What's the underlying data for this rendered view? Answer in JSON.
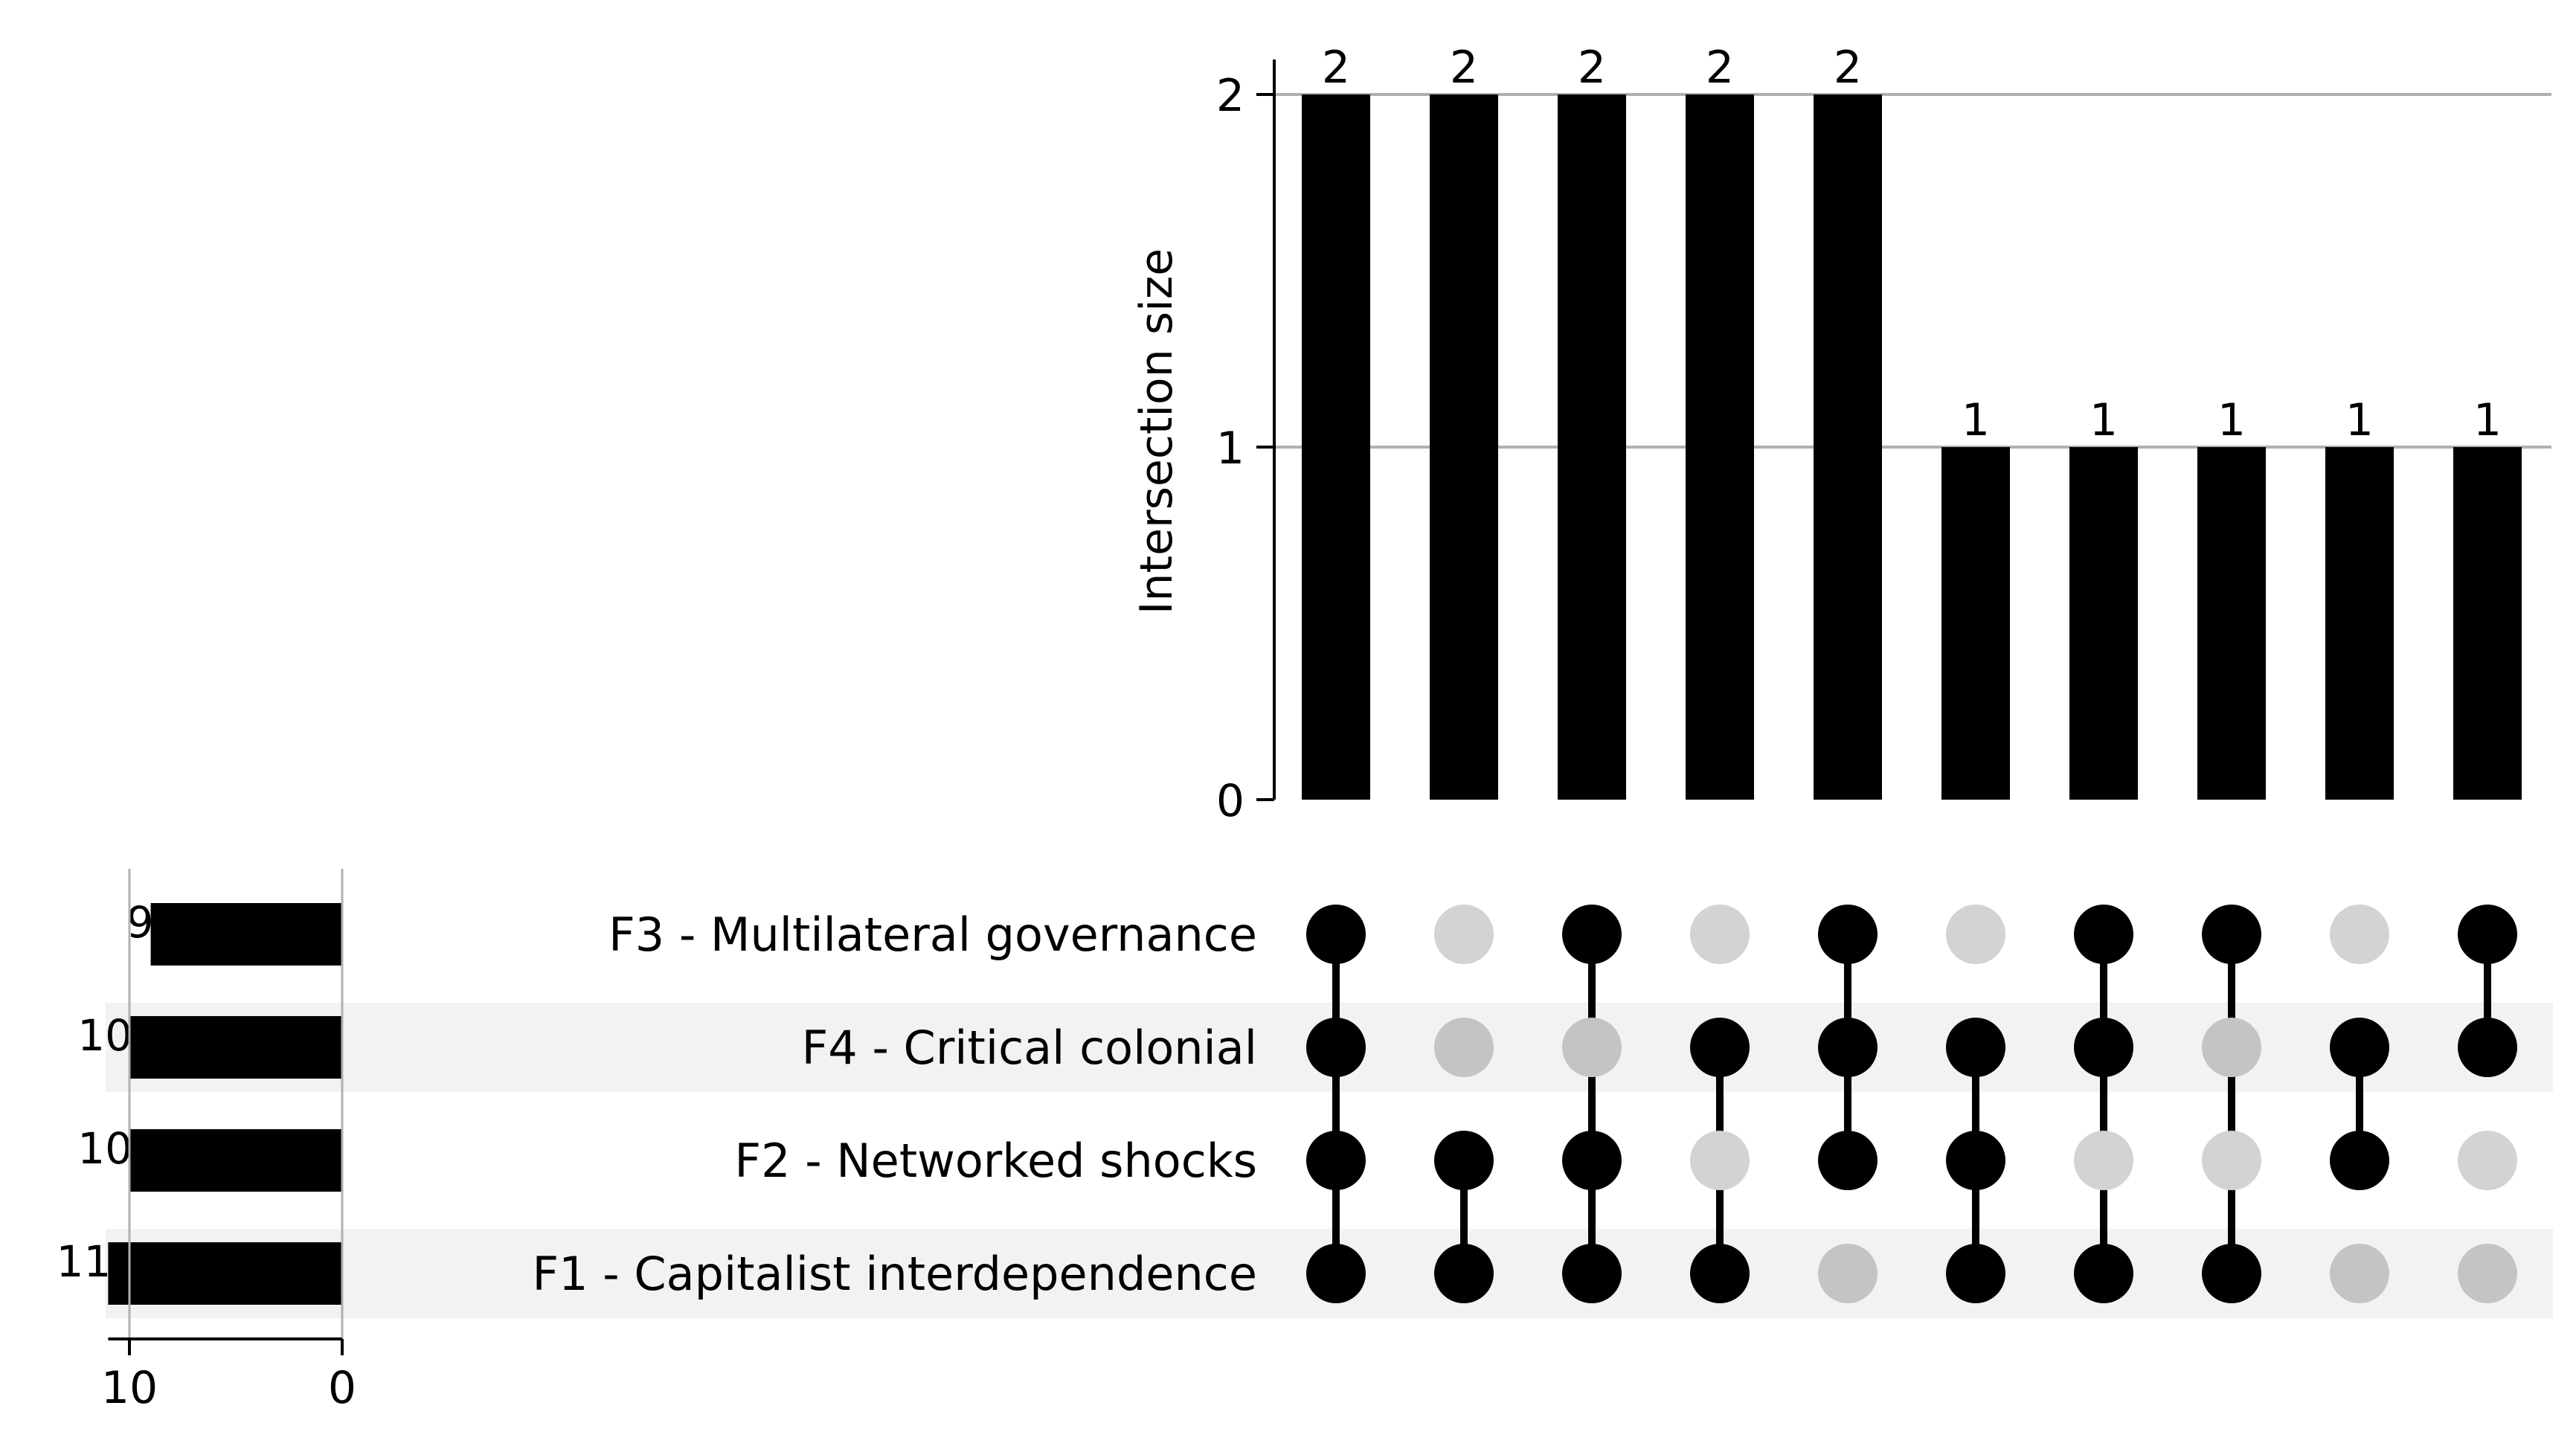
{
  "chart_data": {
    "type": "bar",
    "title": "",
    "ylabel": "Intersection size",
    "ylim": [
      0,
      2
    ],
    "yticks": [
      "0",
      "1",
      "2"
    ],
    "grid": true,
    "sets": [
      "F3 - Multilateral governance",
      "F4 - Critical colonial",
      "F2 - Networked shocks",
      "F1 - Capitalist interdependence"
    ],
    "set_sizes": [
      9,
      10,
      10,
      11
    ],
    "set_size_labels": [
      "9",
      "10",
      "10",
      "11"
    ],
    "set_size_xlim": [
      11,
      0
    ],
    "set_size_ticks": [
      "10",
      "0"
    ],
    "intersections": [
      {
        "members": [
          0,
          1,
          2,
          3
        ],
        "value": 2,
        "label": "2"
      },
      {
        "members": [
          2,
          3
        ],
        "value": 2,
        "label": "2"
      },
      {
        "members": [
          0,
          2,
          3
        ],
        "value": 2,
        "label": "2"
      },
      {
        "members": [
          1,
          3
        ],
        "value": 2,
        "label": "2"
      },
      {
        "members": [
          0,
          1,
          2
        ],
        "value": 2,
        "label": "2"
      },
      {
        "members": [
          1,
          2,
          3
        ],
        "value": 1,
        "label": "1"
      },
      {
        "members": [
          0,
          1,
          3
        ],
        "value": 1,
        "label": "1"
      },
      {
        "members": [
          0,
          3
        ],
        "value": 1,
        "label": "1"
      },
      {
        "members": [
          1,
          2
        ],
        "value": 1,
        "label": "1"
      },
      {
        "members": [
          0,
          1
        ],
        "value": 1,
        "label": "1"
      }
    ],
    "colors": {
      "bar": "#000000",
      "active_dot": "#000000",
      "inactive_dot_light": "#d3d3d3",
      "inactive_dot_shaded": "#c4c4c4",
      "row_shade": "#f2f2f2",
      "grid": "#b0b0b0",
      "axis": "#000000"
    }
  }
}
